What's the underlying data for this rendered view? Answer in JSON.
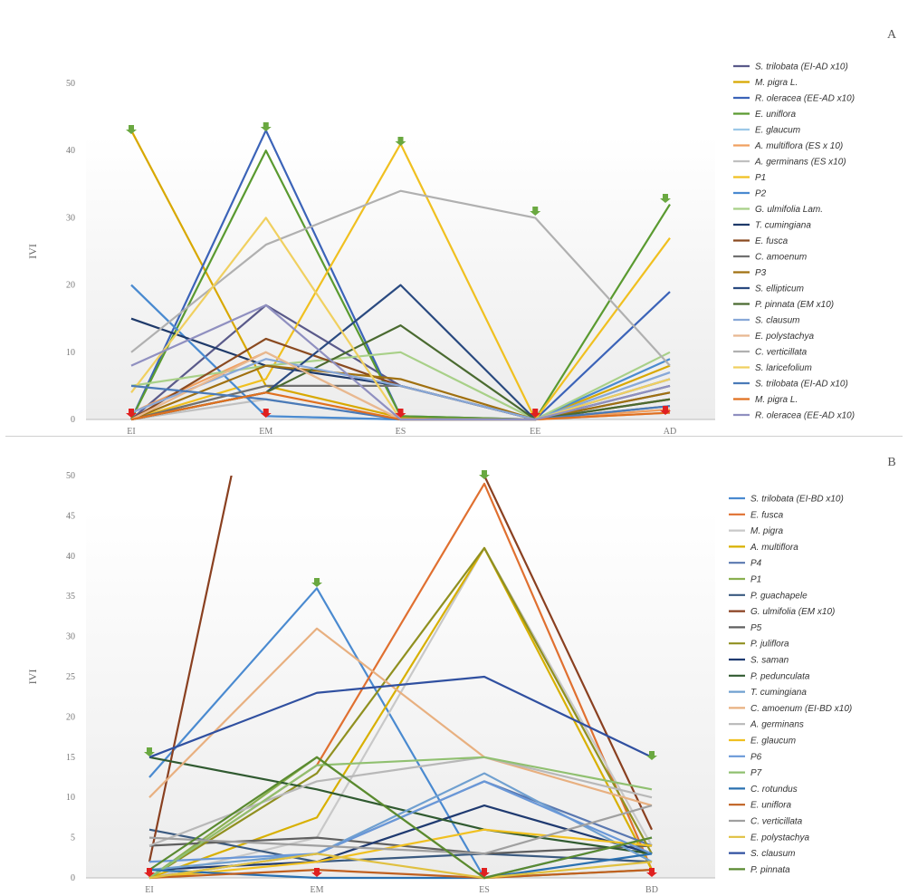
{
  "chart_data": [
    {
      "type": "line",
      "panel_letter": "A",
      "ylabel": "IVI",
      "ylim": [
        0,
        50
      ],
      "yticks": [
        0,
        10,
        20,
        30,
        40,
        50
      ],
      "categories": [
        "EI",
        "EM",
        "ES",
        "EE",
        "AD"
      ],
      "grid": false,
      "legend_position": "right",
      "series": [
        {
          "name": "S. trilobata (EI-AD x10)",
          "color": "#5a5a8a",
          "values": [
            0,
            17,
            5,
            0,
            4
          ]
        },
        {
          "name": "M. pigra L.",
          "color": "#d8a800",
          "values": [
            43,
            5,
            0.3,
            0,
            8
          ]
        },
        {
          "name": "R. oleracea (EE-AD x10)",
          "color": "#3b63b8",
          "values": [
            0,
            43,
            0.5,
            0,
            19
          ]
        },
        {
          "name": "E. uniflora",
          "color": "#5a9a30",
          "values": [
            0,
            40,
            0.5,
            0,
            32
          ]
        },
        {
          "name": "E. glaucum",
          "color": "#9cc8e8",
          "values": [
            20,
            0.5,
            0,
            0,
            7
          ]
        },
        {
          "name": "A. multiflora (ES x 10)",
          "color": "#f0a060",
          "values": [
            1,
            10,
            0,
            0,
            1.5
          ]
        },
        {
          "name": "A. germinans (ES x10)",
          "color": "#c0c0c0",
          "values": [
            0,
            3,
            0,
            0,
            1
          ]
        },
        {
          "name": "P1",
          "color": "#f0c020",
          "values": [
            0,
            6,
            41,
            0,
            27
          ]
        },
        {
          "name": "P2",
          "color": "#4a8ad0",
          "values": [
            20,
            0.5,
            0,
            0,
            9
          ]
        },
        {
          "name": "G. ulmifolia Lam.",
          "color": "#a8d088",
          "values": [
            5,
            8,
            10,
            0,
            10
          ]
        },
        {
          "name": "T. cumingiana",
          "color": "#1f3a6a",
          "values": [
            15,
            8,
            5,
            0,
            5
          ]
        },
        {
          "name": "E. fusca",
          "color": "#8a4a20",
          "values": [
            0,
            12,
            5,
            0,
            3
          ]
        },
        {
          "name": "C. amoenum",
          "color": "#707070",
          "values": [
            0,
            5,
            5,
            0,
            2
          ]
        },
        {
          "name": "P3",
          "color": "#a07010",
          "values": [
            0,
            8,
            6,
            0,
            4
          ]
        },
        {
          "name": "S. ellipticum",
          "color": "#2a4a80",
          "values": [
            0,
            4,
            20,
            0,
            6
          ]
        },
        {
          "name": "P. pinnata (EM x10)",
          "color": "#4a6a30",
          "values": [
            0,
            4,
            14,
            0,
            3
          ]
        },
        {
          "name": "S. clausum",
          "color": "#88a8d8",
          "values": [
            1,
            9,
            5,
            0,
            7
          ]
        },
        {
          "name": "E. polystachya",
          "color": "#e8b890",
          "values": [
            0,
            10,
            0,
            0,
            1
          ]
        },
        {
          "name": "C. verticillata",
          "color": "#b0b0b0",
          "values": [
            10,
            26,
            34,
            30,
            8
          ]
        },
        {
          "name": "S. laricefolium",
          "color": "#f0d060",
          "values": [
            4,
            30,
            0,
            0,
            6
          ]
        },
        {
          "name": "S. trilobata (EI-AD x10)",
          "color": "#4a7ab8",
          "values": [
            5,
            3,
            0,
            0,
            2
          ]
        },
        {
          "name": "M. pigra L.",
          "color": "#e07020",
          "values": [
            0,
            4,
            0,
            0,
            1
          ]
        },
        {
          "name": "R. oleracea (EE-AD x10)",
          "color": "#9090c0",
          "values": [
            8,
            17,
            0,
            0,
            5
          ]
        }
      ],
      "annotations": {
        "green_arrows": [
          "EI",
          "EM",
          "ES",
          "EE",
          "AD"
        ],
        "red_arrows": [
          "EI",
          "EM",
          "ES",
          "EE",
          "AD"
        ]
      }
    },
    {
      "type": "line",
      "panel_letter": "B",
      "ylabel": "IVI",
      "ylim": [
        0,
        50
      ],
      "yticks": [
        0,
        5,
        10,
        15,
        20,
        25,
        30,
        35,
        40,
        45,
        50
      ],
      "categories": [
        "EI",
        "EM",
        "ES",
        "BD"
      ],
      "grid": false,
      "legend_position": "right",
      "series": [
        {
          "name": "S. trilobata (EI-BD x10)",
          "color": "#4a8ad0",
          "values": [
            12.5,
            36,
            0,
            5
          ]
        },
        {
          "name": "E. fusca",
          "color": "#e07030",
          "values": [
            0,
            14,
            49,
            1
          ]
        },
        {
          "name": "M. pigra",
          "color": "#c8c8c8",
          "values": [
            0,
            5,
            41,
            4
          ]
        },
        {
          "name": "A. multiflora",
          "color": "#d8b000",
          "values": [
            0,
            7.5,
            41,
            1
          ]
        },
        {
          "name": "P4",
          "color": "#5a78b0",
          "values": [
            0,
            3,
            12,
            4
          ]
        },
        {
          "name": "P1",
          "color": "#8ab050",
          "values": [
            0,
            15,
            0,
            1
          ]
        },
        {
          "name": "P. guachapele",
          "color": "#3a5a80",
          "values": [
            6,
            2,
            3,
            2
          ]
        },
        {
          "name": "G. ulmifolia (EM x10)",
          "color": "#8a4020",
          "values": [
            2,
            100,
            50,
            6
          ]
        },
        {
          "name": "P5",
          "color": "#606060",
          "values": [
            4,
            5,
            3,
            4
          ]
        },
        {
          "name": "P. juliflora",
          "color": "#909020",
          "values": [
            0,
            13,
            41,
            3
          ]
        },
        {
          "name": "S. saman",
          "color": "#1f3a70",
          "values": [
            1,
            2,
            9,
            3
          ]
        },
        {
          "name": "P. pedunculata",
          "color": "#305a30",
          "values": [
            15,
            11,
            6,
            3
          ]
        },
        {
          "name": "T. cumingiana",
          "color": "#70a0d0",
          "values": [
            1,
            3,
            13,
            2
          ]
        },
        {
          "name": "C. amoenum (EI-BD x10)",
          "color": "#e8b080",
          "values": [
            10,
            31,
            15,
            9
          ]
        },
        {
          "name": "A. germinans",
          "color": "#b8b8b8",
          "values": [
            4,
            12,
            15,
            10
          ]
        },
        {
          "name": "E. glaucum",
          "color": "#f0c020",
          "values": [
            0,
            2,
            6,
            4
          ]
        },
        {
          "name": "P6",
          "color": "#6a98d8",
          "values": [
            2,
            3,
            12,
            3
          ]
        },
        {
          "name": "P7",
          "color": "#90c070",
          "values": [
            0,
            14,
            15,
            11
          ]
        },
        {
          "name": "C. rotundus",
          "color": "#2a70b0",
          "values": [
            1,
            0,
            0,
            3
          ]
        },
        {
          "name": "E. uniflora",
          "color": "#c06020",
          "values": [
            0,
            1,
            0,
            1
          ]
        },
        {
          "name": "C. verticillata",
          "color": "#a0a0a0",
          "values": [
            5,
            4,
            3,
            9
          ]
        },
        {
          "name": "E. polystachya",
          "color": "#e0c040",
          "values": [
            0,
            3,
            0,
            2
          ]
        },
        {
          "name": "S. clausum",
          "color": "#3050a0",
          "values": [
            15,
            23,
            25,
            15
          ]
        },
        {
          "name": "P. pinnata",
          "color": "#5a8a30",
          "values": [
            1,
            15,
            0,
            5
          ]
        }
      ],
      "annotations": {
        "green_arrows": [
          "EI",
          "EM",
          "ES",
          "BD"
        ],
        "red_arrows": [
          "EI",
          "EM",
          "ES",
          "BD"
        ]
      }
    }
  ]
}
